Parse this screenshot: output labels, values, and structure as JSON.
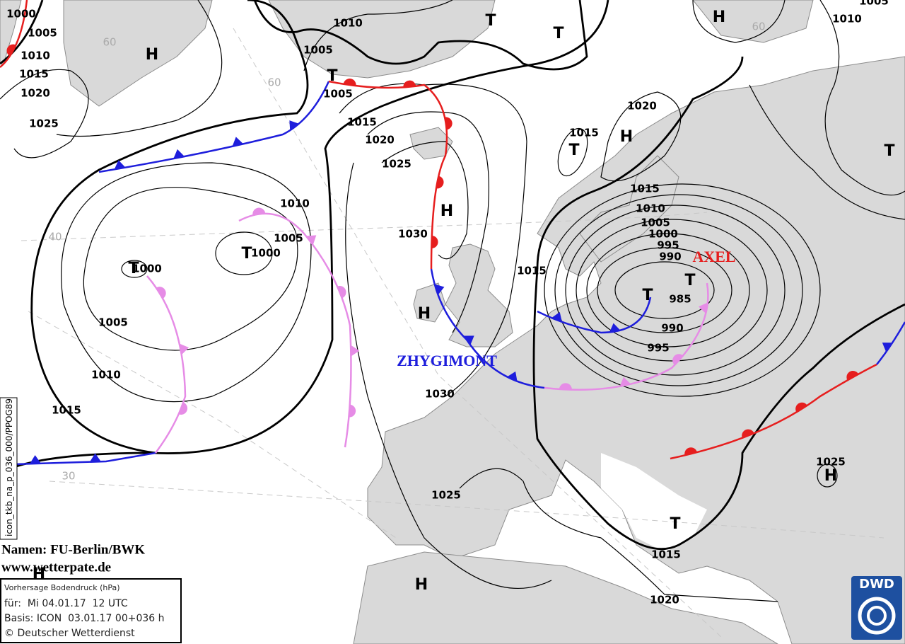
{
  "credits": {
    "names": "Namen: FU-Berlin/BWK",
    "web": "www.wetterpate.de"
  },
  "info": {
    "title": "Vorhersage Bodendruck (hPa)",
    "valid": "für:  Mi 04.01.17  12 UTC",
    "base": "Basis: ICON  03.01.17 00+036 h",
    "copyright": "© Deutscher Wetterdienst"
  },
  "product_id": "icon_tkb_na_p_036_000/PPOG89",
  "logo": "DWD",
  "systems": [
    "AXEL",
    "ZHYGIMONT"
  ],
  "pressure_centers": [
    "H",
    "H",
    "T",
    "T",
    "T",
    "T",
    "H",
    "T",
    "H",
    "T",
    "T",
    "H",
    "T",
    "T",
    "H",
    "T",
    "H",
    "H"
  ],
  "isobar_labels": [
    1000,
    1005,
    1010,
    1015,
    1020,
    1025,
    1010,
    1005,
    1005,
    1015,
    1020,
    1025,
    1010,
    1005,
    1000,
    1000,
    1005,
    1010,
    1015,
    1030,
    1030,
    1015,
    1015,
    1020,
    1015,
    1010,
    1005,
    1000,
    995,
    990,
    985,
    990,
    995,
    1025,
    1015,
    1020,
    1025,
    1010,
    1005
  ],
  "latitude_labels": [
    60,
    60,
    40,
    30,
    60
  ]
}
